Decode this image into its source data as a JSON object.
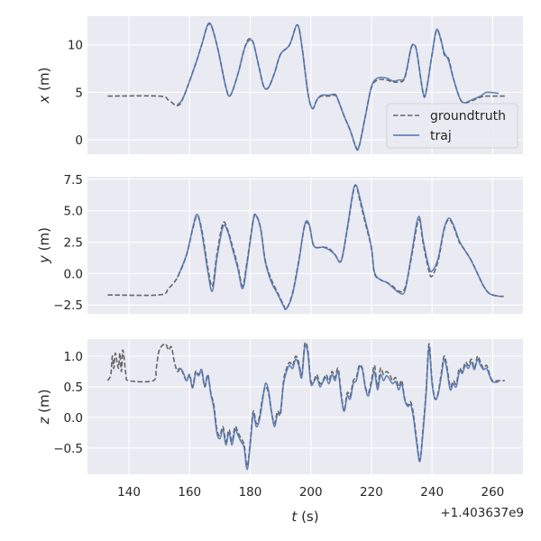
{
  "chart_data": [
    {
      "type": "line",
      "ylabel_var": "x",
      "ylabel_unit": " (m)",
      "ylim": [
        -1.5,
        13.0
      ],
      "yticks": [
        0,
        5,
        10
      ],
      "ytick_labels": [
        "0",
        "5",
        "10"
      ],
      "legend": {
        "placement": "lower-right",
        "entries": [
          "groundtruth",
          "traj"
        ]
      },
      "series": [
        {
          "name": "groundtruth",
          "t": [
            133,
            150,
            153,
            156,
            158,
            162,
            164,
            166.5,
            169,
            172,
            173.5,
            176,
            178,
            179.5,
            181,
            183,
            184.5,
            186,
            188,
            190,
            193,
            195.5,
            197,
            199,
            200.5,
            202,
            203.5,
            206,
            208,
            209,
            211,
            213,
            215,
            216,
            218,
            220,
            222,
            225,
            227,
            229,
            231,
            233,
            234,
            235,
            237,
            238,
            240,
            241.5,
            243,
            244,
            245.5,
            247,
            249,
            250.5,
            253,
            256,
            258,
            262,
            264
          ],
          "values": [
            4.6,
            4.6,
            4.2,
            3.6,
            4.5,
            8,
            10,
            12.2,
            10,
            5.5,
            4.7,
            7,
            9.5,
            10.6,
            10.2,
            7.5,
            5.6,
            5.5,
            7,
            9,
            10,
            12.1,
            10,
            5,
            3.3,
            4.2,
            4.6,
            4.6,
            4.7,
            4.2,
            2.5,
            1,
            -0.8,
            -0.6,
            2.5,
            5.5,
            6.3,
            6.3,
            6.1,
            6.1,
            6.5,
            9.5,
            10,
            9.2,
            5,
            5,
            9,
            11.5,
            10.5,
            9,
            8.5,
            6.5,
            4.5,
            3.9,
            4.1,
            4.5,
            4.6,
            4.6,
            4.6
          ]
        },
        {
          "name": "traj",
          "t": [
            156,
            158,
            162,
            164,
            166.5,
            169,
            172,
            173.5,
            176,
            178,
            179.5,
            181,
            183,
            184.5,
            186,
            188,
            190,
            193,
            195.5,
            197,
            199,
            200.5,
            202,
            203.5,
            206,
            208,
            209,
            211,
            213,
            215,
            216,
            218,
            220,
            222,
            225,
            227,
            229,
            231,
            233,
            234,
            235,
            237,
            238,
            240,
            241.5,
            243,
            244,
            245.5,
            247,
            249,
            250.5,
            253,
            256,
            258,
            262
          ],
          "values": [
            3.7,
            4.5,
            8,
            10,
            12.3,
            10,
            5.5,
            4.7,
            7,
            9.5,
            10.4,
            10.2,
            7.5,
            5.6,
            5.5,
            7,
            9,
            10,
            12.1,
            10,
            5,
            3.3,
            4.2,
            4.7,
            4.7,
            4.8,
            4.2,
            2.5,
            1,
            -0.9,
            -0.6,
            2.5,
            5.6,
            6.5,
            6.5,
            6.2,
            6.3,
            6.6,
            9.6,
            10,
            9.2,
            5,
            5,
            9,
            11.6,
            10.4,
            9.2,
            8.3,
            6.5,
            4.5,
            3.9,
            4.2,
            4.6,
            5.0,
            4.9
          ]
        }
      ]
    },
    {
      "type": "line",
      "ylabel_var": "y",
      "ylabel_unit": " (m)",
      "ylim": [
        -3.2,
        7.7
      ],
      "yticks": [
        -2.5,
        0,
        2.5,
        5,
        7.5
      ],
      "ytick_labels": [
        "−2.5",
        "0.0",
        "2.5",
        "5.0",
        "7.5"
      ],
      "series": [
        {
          "name": "groundtruth",
          "t": [
            133,
            150,
            153,
            156,
            159,
            161,
            162.5,
            164,
            166,
            167.5,
            169,
            171,
            172.5,
            174,
            176,
            177.5,
            179,
            181,
            182,
            183.5,
            185,
            187,
            189,
            191,
            192,
            194,
            196,
            198,
            199.5,
            201,
            204,
            206,
            208,
            210,
            212,
            214,
            215,
            216,
            218,
            220,
            221,
            223,
            225,
            227,
            229,
            231,
            233,
            235,
            236,
            237,
            239,
            240,
            242,
            244,
            245.5,
            247,
            249,
            251,
            253,
            255,
            257,
            259,
            262,
            264
          ],
          "values": [
            -1.7,
            -1.7,
            -1.2,
            -0.3,
            1.5,
            3.5,
            4.6,
            3.5,
            0.5,
            -1.0,
            1.5,
            4.0,
            3.5,
            2.3,
            0.5,
            -1.0,
            1,
            4.3,
            4.6,
            3.5,
            1,
            -0.5,
            -1.5,
            -2.5,
            -2.8,
            -1.5,
            1,
            3.8,
            3.8,
            2.2,
            2.1,
            2,
            1.5,
            1.0,
            3.5,
            6.5,
            7.0,
            6.0,
            4.0,
            2,
            0,
            -0.5,
            -0.7,
            -1.0,
            -1.4,
            -1.2,
            1,
            3.8,
            4.2,
            2.5,
            0.2,
            -0.2,
            1,
            3.5,
            4.3,
            3.8,
            2.5,
            1.8,
            1.0,
            0,
            -1,
            -1.6,
            -1.8,
            -1.8
          ]
        },
        {
          "name": "traj",
          "t": [
            156,
            159,
            161,
            162.5,
            164,
            166,
            167.5,
            169,
            171,
            172.5,
            174,
            176,
            177.5,
            179,
            181,
            182,
            183.5,
            185,
            187,
            189,
            191,
            192,
            194,
            196,
            198,
            199.5,
            201,
            204,
            206,
            208,
            210,
            212,
            214,
            215,
            216,
            218,
            220,
            221,
            223,
            225,
            227,
            229,
            231,
            233,
            235,
            236,
            237,
            239,
            240,
            242,
            244,
            245.5,
            247,
            249,
            251,
            253,
            255,
            257,
            259,
            262
          ],
          "values": [
            -0.3,
            1.5,
            3.6,
            4.7,
            3.3,
            0.2,
            -1.4,
            1.2,
            3.7,
            3.4,
            2.1,
            0.3,
            -1.2,
            0.8,
            4.2,
            4.6,
            3.5,
            0.9,
            -0.7,
            -1.6,
            -2.6,
            -2.8,
            -1.6,
            0.9,
            3.9,
            3.9,
            2.2,
            2.1,
            1.9,
            1.5,
            1.0,
            3.6,
            6.6,
            7.0,
            6.2,
            4.2,
            2.1,
            0.1,
            -0.5,
            -0.7,
            -1.1,
            -1.5,
            -1.4,
            1.2,
            4.1,
            4.4,
            2.7,
            0.5,
            0.2,
            1.2,
            3.6,
            4.4,
            3.9,
            2.6,
            1.8,
            1.0,
            0,
            -1,
            -1.6,
            -1.8
          ]
        }
      ]
    },
    {
      "type": "line",
      "ylabel_var": "z",
      "ylabel_unit": " (m)",
      "ylim": [
        -0.93,
        1.28
      ],
      "yticks": [
        -0.5,
        0,
        0.5,
        1.0
      ],
      "ytick_labels": [
        "−0.5",
        "0.0",
        "0.5",
        "1.0"
      ],
      "xlabel_var": "t",
      "xlabel_unit": " (s)",
      "xlim": [
        126.3,
        270
      ],
      "xticks": [
        140,
        160,
        180,
        200,
        220,
        240,
        260
      ],
      "xtick_labels": [
        "140",
        "160",
        "180",
        "200",
        "220",
        "240",
        "260"
      ],
      "x_offset_label": "+1.403637e9",
      "series": [
        {
          "name": "groundtruth",
          "t": [
            133,
            134,
            134.5,
            135,
            135.5,
            136.5,
            137,
            137.5,
            138,
            139,
            140,
            148,
            149,
            150,
            152,
            153,
            154,
            155,
            156,
            157,
            158,
            159,
            160,
            161,
            162,
            163,
            164,
            165,
            166,
            167,
            168,
            169,
            170,
            171,
            172,
            173,
            174,
            175,
            176,
            177,
            178,
            179,
            180,
            181,
            182,
            183,
            184,
            185,
            186,
            187,
            188,
            189,
            190,
            191,
            192,
            193,
            194,
            195,
            196,
            197,
            198,
            199,
            200,
            201,
            202,
            203,
            204,
            205,
            206,
            207,
            208,
            209,
            210,
            211,
            212,
            213,
            214,
            215,
            216,
            217,
            218,
            219,
            220,
            221,
            222,
            223,
            224,
            225,
            226,
            227,
            228,
            229,
            230,
            231,
            232,
            233,
            234,
            235,
            236,
            237,
            238,
            239,
            240,
            241,
            242,
            243,
            244,
            245,
            246,
            247,
            248,
            249,
            250,
            251,
            252,
            253,
            254,
            255,
            256,
            257,
            258,
            259,
            260,
            262,
            264
          ],
          "values": [
            0.6,
            0.7,
            1.0,
            0.8,
            1.05,
            0.8,
            1.05,
            0.75,
            1.1,
            0.7,
            0.6,
            0.6,
            0.8,
            1.1,
            1.2,
            1.1,
            1.15,
            0.9,
            0.75,
            0.8,
            0.7,
            0.6,
            0.7,
            0.5,
            0.75,
            0.7,
            0.75,
            0.5,
            0.7,
            0.4,
            0.2,
            -0.2,
            -0.3,
            -0.15,
            -0.4,
            -0.2,
            -0.4,
            -0.15,
            -0.25,
            -0.35,
            -0.45,
            -0.8,
            -0.4,
            0.1,
            -0.1,
            0.0,
            0.3,
            0.5,
            0.4,
            0.1,
            -0.1,
            0.1,
            0.05,
            0.6,
            0.8,
            0.9,
            0.85,
            1.0,
            0.9,
            0.7,
            1.2,
            1.1,
            0.6,
            0.6,
            0.7,
            0.55,
            0.6,
            0.7,
            0.6,
            0.75,
            0.65,
            0.8,
            0.4,
            0.1,
            0.4,
            0.35,
            0.6,
            0.65,
            0.85,
            0.8,
            0.5,
            0.4,
            0.6,
            0.85,
            0.5,
            0.8,
            0.7,
            0.75,
            0.7,
            0.6,
            0.65,
            0.5,
            0.6,
            0.3,
            0.2,
            0.25,
            0.0,
            -0.4,
            -0.7,
            -0.2,
            0.4,
            1.2,
            0.6,
            0.3,
            0.4,
            0.7,
            1.0,
            0.8,
            0.5,
            0.6,
            0.55,
            0.8,
            0.75,
            0.9,
            0.85,
            0.95,
            0.8,
            1.0,
            0.9,
            0.8,
            0.85,
            0.7,
            0.6,
            0.6,
            0.6
          ]
        },
        {
          "name": "traj",
          "t": [
            156,
            157,
            158,
            159,
            160,
            161,
            162,
            163,
            164,
            165,
            166,
            167,
            168,
            169,
            170,
            171,
            172,
            173,
            174,
            175,
            176,
            177,
            178,
            179,
            180,
            181,
            182,
            183,
            184,
            185,
            186,
            187,
            188,
            189,
            190,
            191,
            192,
            193,
            194,
            195,
            196,
            197,
            198,
            199,
            200,
            201,
            202,
            203,
            204,
            205,
            206,
            207,
            208,
            209,
            210,
            211,
            212,
            213,
            214,
            215,
            216,
            217,
            218,
            219,
            220,
            221,
            222,
            223,
            224,
            225,
            226,
            227,
            228,
            229,
            230,
            231,
            232,
            233,
            234,
            235,
            236,
            237,
            238,
            239,
            240,
            241,
            242,
            243,
            244,
            245,
            246,
            247,
            248,
            249,
            250,
            251,
            252,
            253,
            254,
            255,
            256,
            257,
            258,
            259,
            260,
            262
          ],
          "values": [
            0.78,
            0.8,
            0.72,
            0.6,
            0.68,
            0.48,
            0.72,
            0.68,
            0.78,
            0.5,
            0.68,
            0.38,
            0.15,
            -0.25,
            -0.35,
            -0.2,
            -0.45,
            -0.25,
            -0.45,
            -0.2,
            -0.3,
            -0.4,
            -0.5,
            -0.85,
            -0.45,
            0.05,
            -0.15,
            -0.05,
            0.25,
            0.55,
            0.45,
            0.1,
            -0.15,
            0.05,
            0.1,
            0.55,
            0.75,
            0.85,
            0.8,
            0.95,
            0.85,
            0.65,
            1.15,
            1.05,
            0.55,
            0.58,
            0.65,
            0.5,
            0.58,
            0.65,
            0.55,
            0.7,
            0.6,
            0.75,
            0.35,
            0.1,
            0.35,
            0.3,
            0.55,
            0.6,
            0.82,
            0.78,
            0.48,
            0.35,
            0.55,
            0.75,
            0.45,
            0.7,
            0.6,
            0.68,
            0.62,
            0.55,
            0.58,
            0.45,
            0.55,
            0.28,
            0.18,
            0.2,
            -0.05,
            -0.45,
            -0.72,
            -0.25,
            0.35,
            1.15,
            0.55,
            0.3,
            0.38,
            0.65,
            0.95,
            0.75,
            0.45,
            0.55,
            0.5,
            0.75,
            0.72,
            0.85,
            0.8,
            0.9,
            0.78,
            0.95,
            0.85,
            0.78,
            0.8,
            0.68,
            0.58,
            0.58
          ]
        }
      ]
    }
  ],
  "colors": {
    "groundtruth": "#666666",
    "traj": "#4c72b0",
    "background": "#eaeaf2",
    "grid": "#ffffff"
  }
}
